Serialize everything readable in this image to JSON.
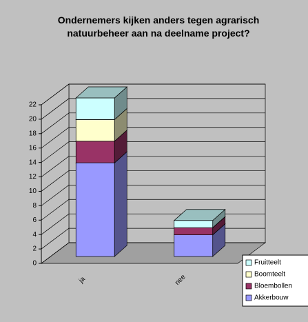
{
  "chart_data": {
    "type": "bar3d_stacked",
    "title": "Ondernemers kijken anders tegen agrarisch natuurbeheer aan na deelname project?",
    "categories": [
      "ja",
      "nee"
    ],
    "series": [
      {
        "name": "Akkerbouw",
        "color": "#9999ff",
        "values": [
          13,
          3
        ]
      },
      {
        "name": "Bloembollen",
        "color": "#993366",
        "values": [
          3,
          1
        ]
      },
      {
        "name": "Boomteelt",
        "color": "#ffffcc",
        "values": [
          3,
          0
        ]
      },
      {
        "name": "Fruitteelt",
        "color": "#ccffff",
        "values": [
          3,
          1
        ]
      }
    ],
    "ylim": [
      0,
      22
    ],
    "yticks": [
      0,
      2,
      4,
      6,
      8,
      10,
      12,
      14,
      16,
      18,
      20,
      22
    ],
    "grid": true,
    "legend": "bottom-right"
  }
}
